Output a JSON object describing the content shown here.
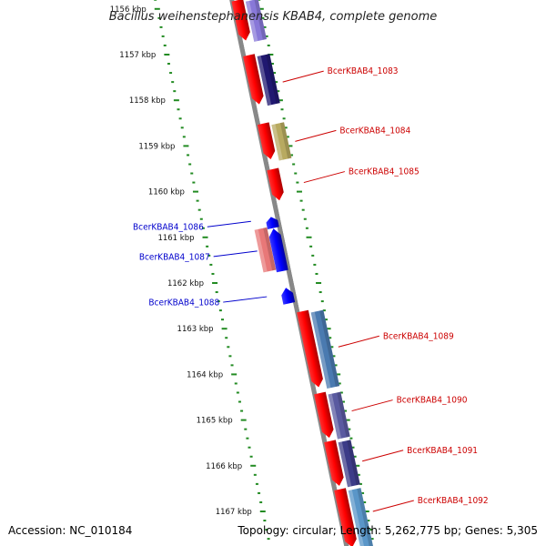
{
  "title": "Bacillus weihenstephanensis KBAB4, complete genome",
  "accession": "Accession: NC_010184",
  "summary": "Topology: circular; Length: 5,262,775 bp; Genes: 5,305",
  "colors": {
    "forward_label": "#cc0000",
    "reverse_label": "#0000cc",
    "tick": "#228b22",
    "backbone": "#888888"
  },
  "scale": [
    {
      "label": "1156 kbp",
      "kb": 1156
    },
    {
      "label": "1157 kbp",
      "kb": 1157
    },
    {
      "label": "1158 kbp",
      "kb": 1158
    },
    {
      "label": "1159 kbp",
      "kb": 1159
    },
    {
      "label": "1160 kbp",
      "kb": 1160
    },
    {
      "label": "1161 kbp",
      "kb": 1161
    },
    {
      "label": "1162 kbp",
      "kb": 1162
    },
    {
      "label": "1163 kbp",
      "kb": 1163
    },
    {
      "label": "1164 kbp",
      "kb": 1164
    },
    {
      "label": "1165 kbp",
      "kb": 1165
    },
    {
      "label": "1166 kbp",
      "kb": 1166
    },
    {
      "label": "1167 kbp",
      "kb": 1167
    }
  ],
  "genes": [
    {
      "label": "",
      "strand": "+",
      "start_kb": 1155.8,
      "end_kb": 1156.7,
      "cog_color": "#8878d8"
    },
    {
      "label": "BcerKBAB4_1083",
      "strand": "+",
      "start_kb": 1157.0,
      "end_kb": 1158.1,
      "cog_color": "#201870"
    },
    {
      "label": "BcerKBAB4_1084",
      "strand": "+",
      "start_kb": 1158.5,
      "end_kb": 1159.3,
      "cog_color": "#b8aa60"
    },
    {
      "label": "BcerKBAB4_1085",
      "strand": "+",
      "start_kb": 1159.5,
      "end_kb": 1160.2,
      "cog_color": ""
    },
    {
      "label": "BcerKBAB4_1086",
      "strand": "-",
      "start_kb": 1160.55,
      "end_kb": 1160.8,
      "cog_color": ""
    },
    {
      "label": "BcerKBAB4_1087",
      "strand": "-",
      "start_kb": 1160.8,
      "end_kb": 1161.75,
      "cog_color": "#e87878"
    },
    {
      "label": "BcerKBAB4_1088",
      "strand": "-",
      "start_kb": 1162.1,
      "end_kb": 1162.45,
      "cog_color": ""
    },
    {
      "label": "BcerKBAB4_1089",
      "strand": "+",
      "start_kb": 1162.6,
      "end_kb": 1164.3,
      "cog_color": "#4a7ab0"
    },
    {
      "label": "BcerKBAB4_1090",
      "strand": "+",
      "start_kb": 1164.4,
      "end_kb": 1165.4,
      "cog_color": "#5a5aa0"
    },
    {
      "label": "BcerKBAB4_1091",
      "strand": "+",
      "start_kb": 1165.45,
      "end_kb": 1166.45,
      "cog_color": "#3c3c88"
    },
    {
      "label": "BcerKBAB4_1092",
      "strand": "+",
      "start_kb": 1166.5,
      "end_kb": 1167.8,
      "cog_color": "#5a96c8"
    }
  ],
  "gene_labels": [
    {
      "text": "BcerKBAB4_1083",
      "strand": "+",
      "kb": 1157.6
    },
    {
      "text": "BcerKBAB4_1084",
      "strand": "+",
      "kb": 1158.9
    },
    {
      "text": "BcerKBAB4_1085",
      "strand": "+",
      "kb": 1159.8
    },
    {
      "text": "BcerKBAB4_1086",
      "strand": "-",
      "kb": 1160.65
    },
    {
      "text": "BcerKBAB4_1087",
      "strand": "-",
      "kb": 1161.3
    },
    {
      "text": "BcerKBAB4_1088",
      "strand": "-",
      "kb": 1162.3
    },
    {
      "text": "BcerKBAB4_1089",
      "strand": "+",
      "kb": 1163.4
    },
    {
      "text": "BcerKBAB4_1090",
      "strand": "+",
      "kb": 1164.8
    },
    {
      "text": "BcerKBAB4_1091",
      "strand": "+",
      "kb": 1165.9
    },
    {
      "text": "BcerKBAB4_1092",
      "strand": "+",
      "kb": 1167.0
    }
  ]
}
